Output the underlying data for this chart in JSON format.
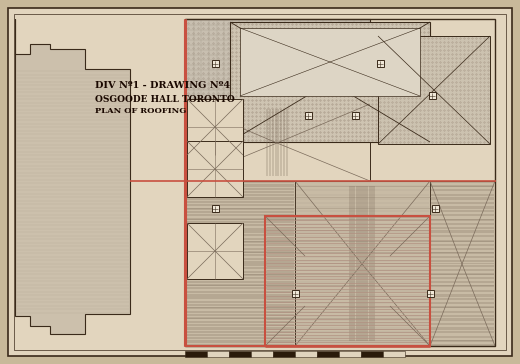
{
  "bg_color": "#c8b99a",
  "paper_color": "#e2d5be",
  "border_color": "#5a4a3a",
  "line_color": "#8a7a6a",
  "red_color": "#c85040",
  "dark_color": "#3a2a1a",
  "mid_color": "#9a8a7a",
  "title_lines": [
    "DIV Nº1 - DRAWING Nº4",
    "OSGOODE HALL TORONTO",
    "PLAN OF ROOFING"
  ],
  "title_color": "#1a0800",
  "hatch_dark": "#7a6a5a",
  "hatch_light": "#b0a090",
  "shade_dark": "#bab0a0",
  "shade_med": "#cec4b4",
  "shade_light": "#ddd5c5"
}
